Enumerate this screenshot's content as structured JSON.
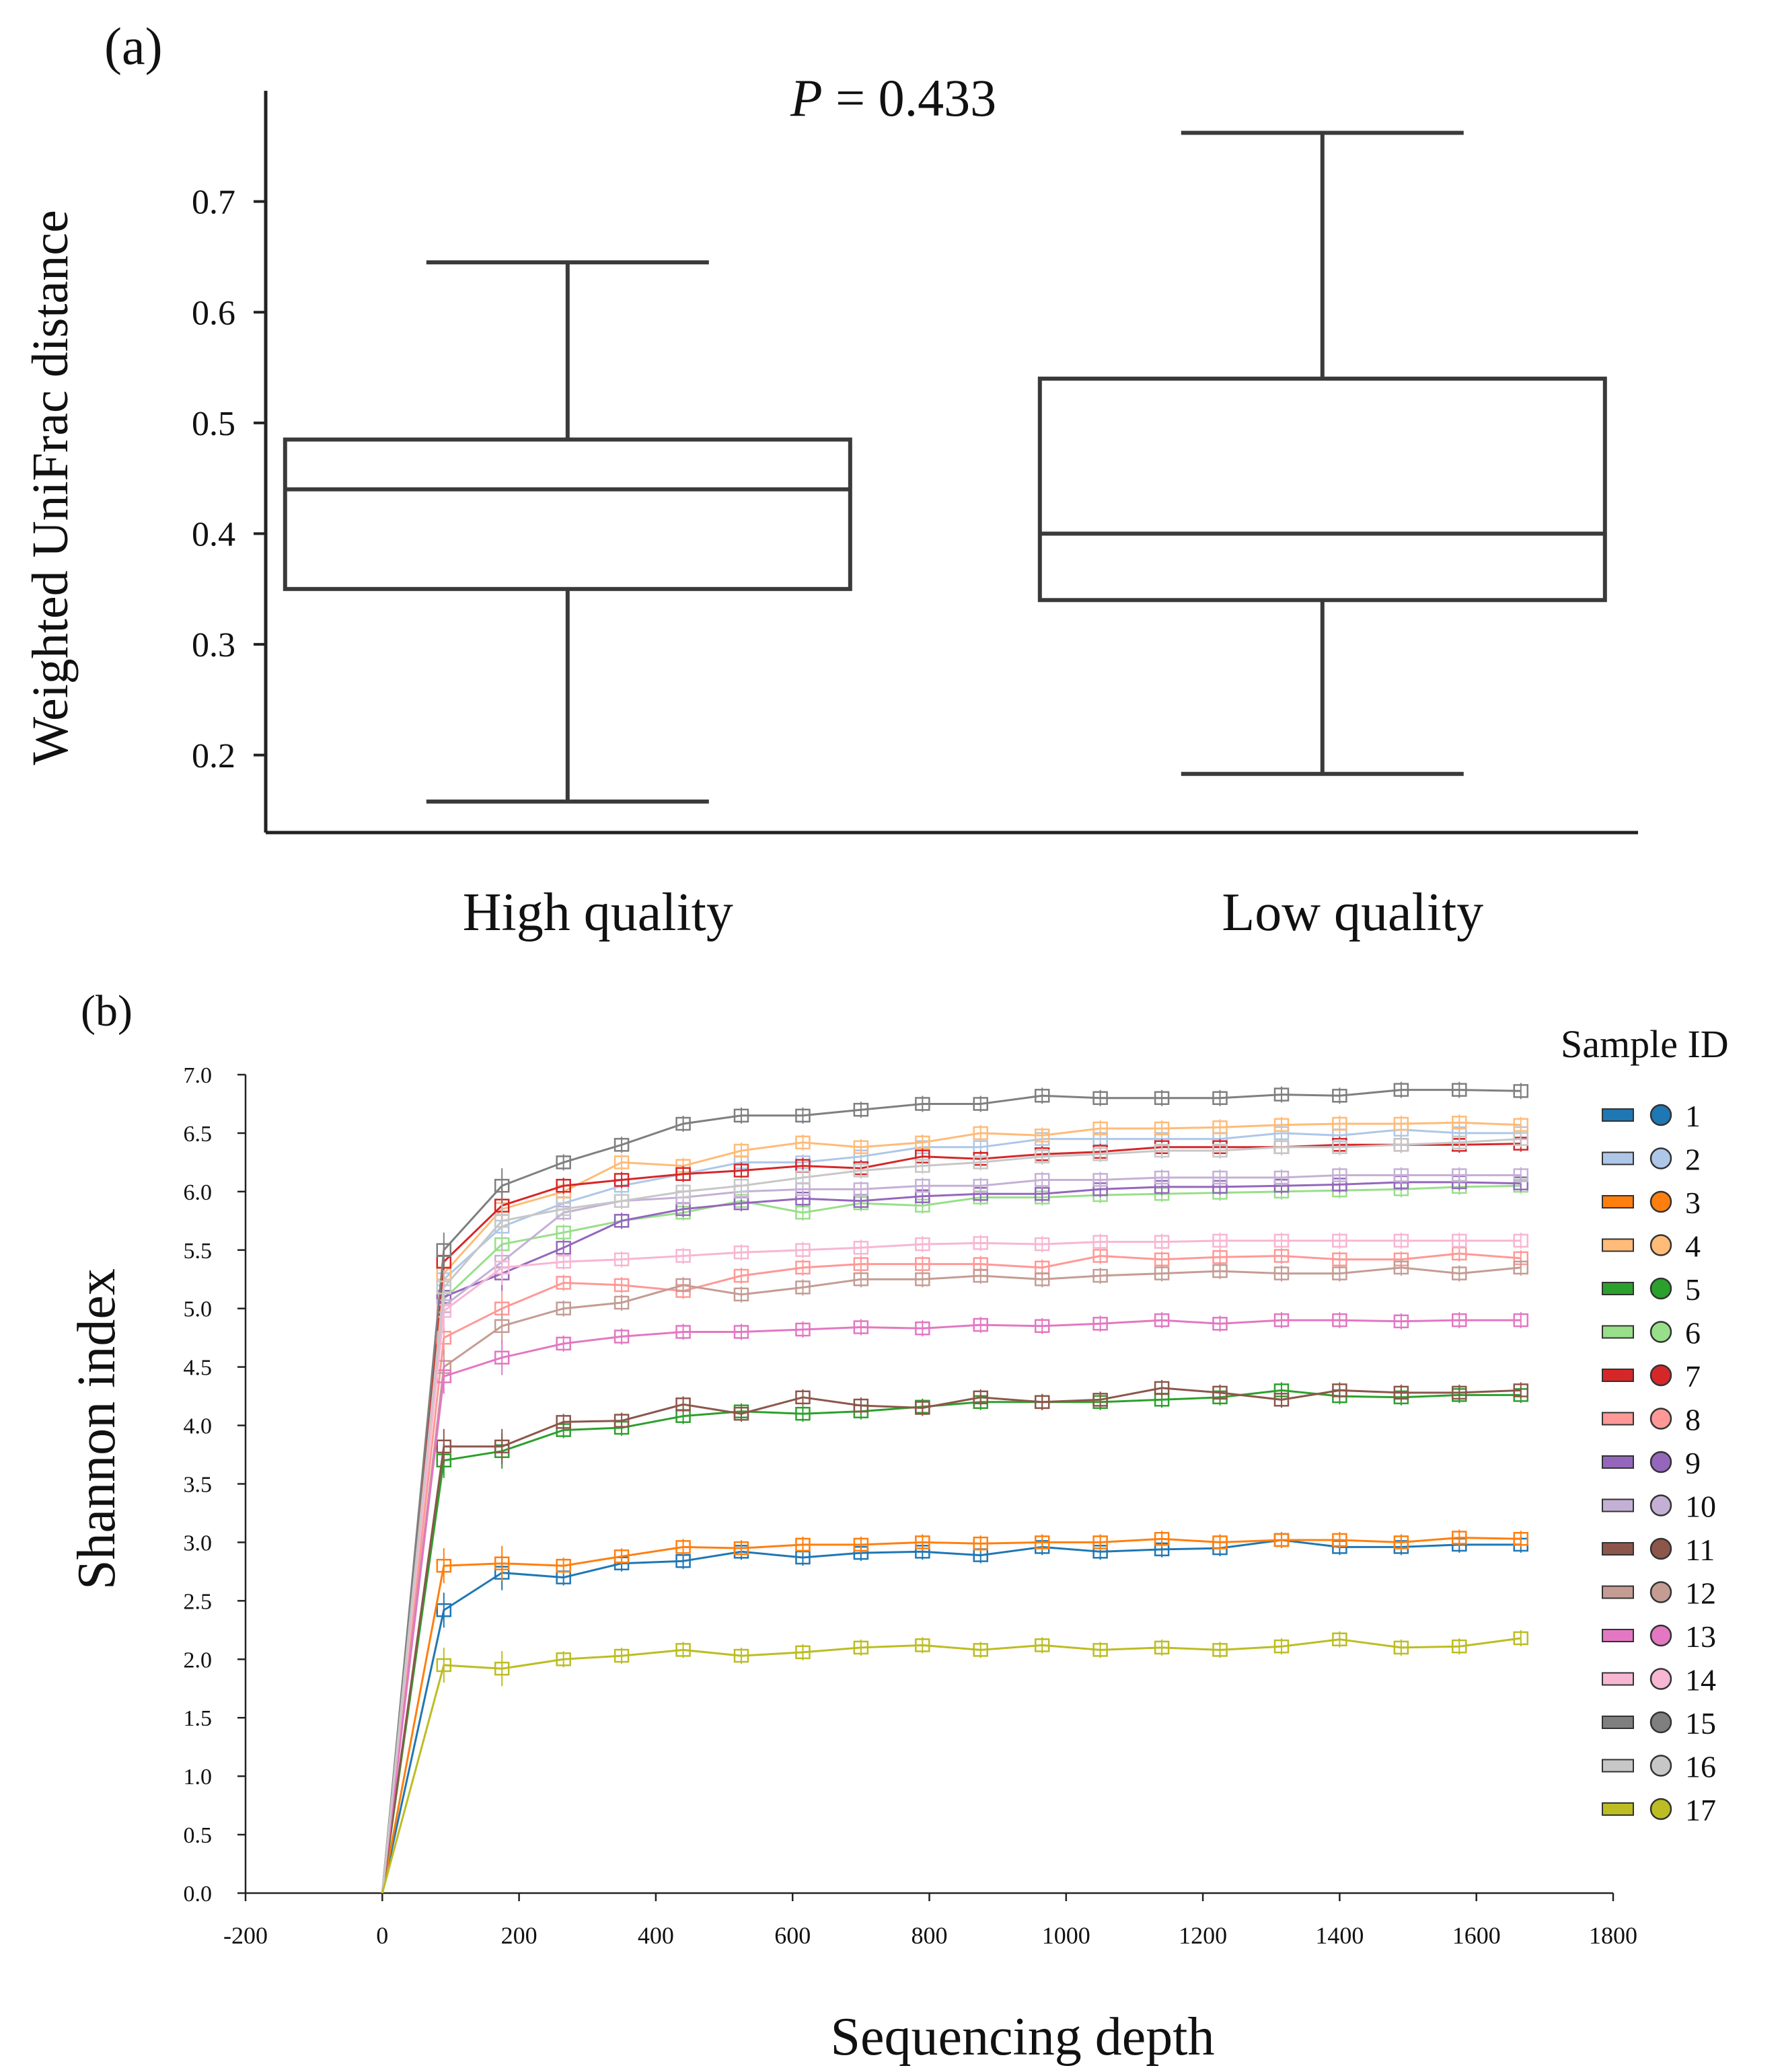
{
  "chart_data": [
    {
      "type": "box",
      "panel_label": "(a)",
      "annotation": {
        "prefix": "P",
        "text": " = 0.433"
      },
      "ylabel": "Weighted UniFrac distance",
      "xlabel": "",
      "ylim": [
        0.13,
        0.8
      ],
      "yticks": [
        "0.2",
        "0.3",
        "0.4",
        "0.5",
        "0.6",
        "0.7"
      ],
      "categories": [
        "High quality",
        "Low quality"
      ],
      "boxes": [
        {
          "name": "High quality",
          "min": 0.158,
          "q1": 0.35,
          "median": 0.44,
          "q3": 0.485,
          "max": 0.645
        },
        {
          "name": "Low quality",
          "min": 0.183,
          "q1": 0.34,
          "median": 0.4,
          "q3": 0.54,
          "max": 0.762
        }
      ]
    },
    {
      "type": "line",
      "panel_label": "(b)",
      "xlabel": "Sequencing depth",
      "ylabel": "Shannon index",
      "xlim": [
        -200,
        1800
      ],
      "ylim": [
        0,
        7
      ],
      "xticks": [
        "-200",
        "0",
        "200",
        "400",
        "600",
        "800",
        "1000",
        "1200",
        "1400",
        "1600",
        "1800"
      ],
      "yticks": [
        "0.0",
        "0.5",
        "1.0",
        "1.5",
        "2.0",
        "2.5",
        "3.0",
        "3.5",
        "4.0",
        "4.5",
        "5.0",
        "5.5",
        "6.0",
        "6.5",
        "7.0"
      ],
      "legend_title": "Sample ID",
      "x": [
        0,
        90,
        175,
        265,
        350,
        440,
        525,
        615,
        700,
        790,
        875,
        965,
        1050,
        1140,
        1225,
        1315,
        1400,
        1490,
        1575,
        1665
      ],
      "series": [
        {
          "name": "1",
          "color": "#1f77b4",
          "values": [
            0,
            2.42,
            2.74,
            2.7,
            2.82,
            2.84,
            2.92,
            2.87,
            2.91,
            2.92,
            2.89,
            2.96,
            2.92,
            2.94,
            2.95,
            3.02,
            2.96,
            2.96,
            2.98,
            2.98
          ]
        },
        {
          "name": "2",
          "color": "#aec7e8",
          "values": [
            0,
            5.25,
            5.7,
            5.9,
            6.05,
            6.15,
            6.25,
            6.25,
            6.3,
            6.38,
            6.38,
            6.45,
            6.45,
            6.45,
            6.45,
            6.5,
            6.48,
            6.53,
            6.5,
            6.5
          ]
        },
        {
          "name": "3",
          "color": "#ff7f0e",
          "values": [
            0,
            2.8,
            2.82,
            2.8,
            2.88,
            2.96,
            2.95,
            2.98,
            2.98,
            3.0,
            2.99,
            3.0,
            3.0,
            3.03,
            3.0,
            3.02,
            3.02,
            3.0,
            3.04,
            3.03
          ]
        },
        {
          "name": "4",
          "color": "#ffbb78",
          "values": [
            0,
            5.3,
            5.85,
            6.0,
            6.25,
            6.22,
            6.35,
            6.42,
            6.38,
            6.42,
            6.5,
            6.48,
            6.54,
            6.54,
            6.55,
            6.57,
            6.58,
            6.58,
            6.59,
            6.57
          ]
        },
        {
          "name": "5",
          "color": "#2ca02c",
          "values": [
            0,
            3.7,
            3.78,
            3.96,
            3.98,
            4.08,
            4.12,
            4.1,
            4.12,
            4.16,
            4.2,
            4.2,
            4.2,
            4.22,
            4.24,
            4.3,
            4.25,
            4.24,
            4.26,
            4.26
          ]
        },
        {
          "name": "6",
          "color": "#98df8a",
          "values": [
            0,
            5.08,
            5.55,
            5.65,
            5.75,
            5.82,
            5.92,
            5.82,
            5.9,
            5.88,
            5.95,
            5.95,
            5.97,
            5.98,
            5.99,
            6.0,
            6.01,
            6.02,
            6.04,
            6.05
          ]
        },
        {
          "name": "7",
          "color": "#d62728",
          "values": [
            0,
            5.4,
            5.88,
            6.05,
            6.1,
            6.15,
            6.18,
            6.22,
            6.2,
            6.3,
            6.28,
            6.32,
            6.34,
            6.38,
            6.38,
            6.38,
            6.4,
            6.4,
            6.4,
            6.41
          ]
        },
        {
          "name": "8",
          "color": "#ff9896",
          "values": [
            0,
            4.75,
            5.0,
            5.22,
            5.2,
            5.15,
            5.28,
            5.35,
            5.38,
            5.38,
            5.38,
            5.35,
            5.45,
            5.42,
            5.44,
            5.45,
            5.42,
            5.42,
            5.47,
            5.43
          ]
        },
        {
          "name": "9",
          "color": "#9467bd",
          "values": [
            0,
            5.1,
            5.3,
            5.52,
            5.75,
            5.85,
            5.9,
            5.94,
            5.92,
            5.96,
            5.98,
            5.98,
            6.02,
            6.04,
            6.04,
            6.05,
            6.06,
            6.08,
            6.08,
            6.07
          ]
        },
        {
          "name": "10",
          "color": "#c5b0d5",
          "values": [
            0,
            5.02,
            5.4,
            5.82,
            5.92,
            5.95,
            6.0,
            6.02,
            6.02,
            6.05,
            6.05,
            6.1,
            6.1,
            6.12,
            6.12,
            6.12,
            6.14,
            6.14,
            6.14,
            6.14
          ]
        },
        {
          "name": "11",
          "color": "#8c564b",
          "values": [
            0,
            3.82,
            3.82,
            4.03,
            4.04,
            4.18,
            4.1,
            4.24,
            4.17,
            4.15,
            4.24,
            4.2,
            4.22,
            4.32,
            4.28,
            4.22,
            4.3,
            4.28,
            4.28,
            4.3
          ]
        },
        {
          "name": "12",
          "color": "#c49c94",
          "values": [
            0,
            4.5,
            4.85,
            5.0,
            5.05,
            5.2,
            5.12,
            5.18,
            5.25,
            5.25,
            5.28,
            5.25,
            5.28,
            5.3,
            5.32,
            5.3,
            5.3,
            5.35,
            5.3,
            5.35
          ]
        },
        {
          "name": "13",
          "color": "#e377c2",
          "values": [
            0,
            4.42,
            4.58,
            4.7,
            4.76,
            4.8,
            4.8,
            4.82,
            4.84,
            4.83,
            4.86,
            4.85,
            4.87,
            4.9,
            4.87,
            4.9,
            4.9,
            4.89,
            4.9,
            4.9
          ]
        },
        {
          "name": "14",
          "color": "#f7b6d2",
          "values": [
            0,
            4.98,
            5.35,
            5.4,
            5.42,
            5.45,
            5.48,
            5.5,
            5.52,
            5.55,
            5.56,
            5.55,
            5.57,
            5.57,
            5.58,
            5.58,
            5.58,
            5.58,
            5.58,
            5.58
          ]
        },
        {
          "name": "15",
          "color": "#7f7f7f",
          "values": [
            0,
            5.5,
            6.05,
            6.25,
            6.4,
            6.58,
            6.65,
            6.65,
            6.7,
            6.75,
            6.75,
            6.82,
            6.8,
            6.8,
            6.8,
            6.83,
            6.82,
            6.87,
            6.87,
            6.86
          ]
        },
        {
          "name": "16",
          "color": "#c7c7c7",
          "values": [
            0,
            5.18,
            5.75,
            5.85,
            5.92,
            6.0,
            6.05,
            6.12,
            6.18,
            6.22,
            6.25,
            6.3,
            6.32,
            6.35,
            6.35,
            6.38,
            6.38,
            6.4,
            6.42,
            6.45
          ]
        },
        {
          "name": "17",
          "color": "#bcbd22",
          "values": [
            0,
            1.95,
            1.92,
            2.0,
            2.03,
            2.08,
            2.03,
            2.06,
            2.1,
            2.12,
            2.08,
            2.12,
            2.08,
            2.1,
            2.08,
            2.11,
            2.17,
            2.1,
            2.11,
            2.18
          ]
        }
      ]
    }
  ]
}
